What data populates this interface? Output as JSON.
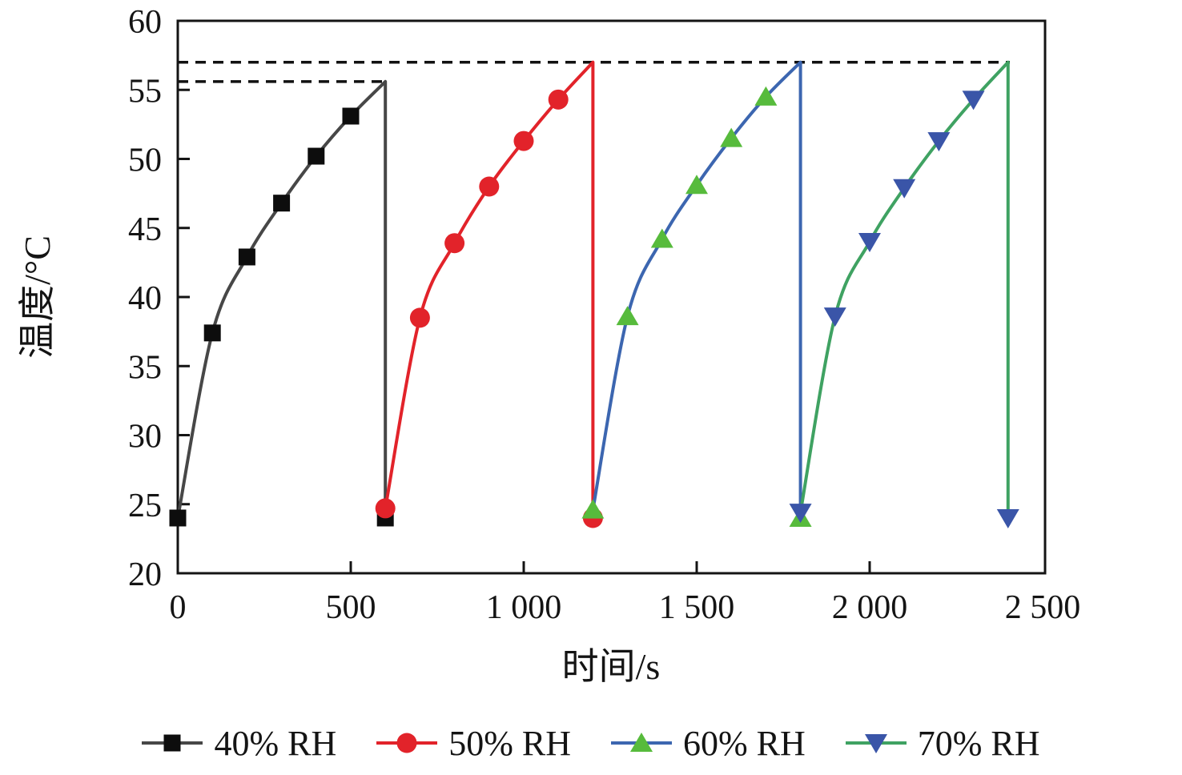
{
  "chart_data": {
    "type": "line",
    "title": "",
    "xlabel": "时间/s",
    "ylabel": "温度/°C",
    "xlim": [
      0,
      2507
    ],
    "ylim": [
      20,
      60
    ],
    "x_ticks": [
      0,
      500,
      1000,
      1500,
      2000,
      2500
    ],
    "x_tick_labels": [
      "0",
      "500",
      "1 000",
      "1 500",
      "2 000",
      "2 500"
    ],
    "y_ticks": [
      20,
      25,
      30,
      35,
      40,
      45,
      50,
      55,
      60
    ],
    "grid": "off",
    "axis_color": "#141414",
    "reference_lines": [
      {
        "y": 57.0,
        "x_start": 0,
        "x_end": 2405,
        "style": "dashed",
        "color": "#111111"
      },
      {
        "y": 55.6,
        "x_start": 0,
        "x_end": 600,
        "style": "dashed",
        "color": "#111111"
      }
    ],
    "series": [
      {
        "name": "40% RH",
        "line_color": "#474747",
        "marker": "square",
        "marker_color": "#0d0d0d",
        "rise": [
          [
            0,
            24.0
          ],
          [
            100,
            37.4
          ],
          [
            200,
            42.9
          ],
          [
            300,
            46.8
          ],
          [
            400,
            50.2
          ],
          [
            500,
            53.1
          ],
          [
            600,
            55.6
          ]
        ],
        "drop": {
          "x": 600,
          "to": 24.0
        }
      },
      {
        "name": "50% RH",
        "line_color": "#e2232a",
        "marker": "circle",
        "marker_color": "#e2232a",
        "rise": [
          [
            600,
            24.7
          ],
          [
            700,
            38.5
          ],
          [
            800,
            43.9
          ],
          [
            900,
            48.0
          ],
          [
            1000,
            51.3
          ],
          [
            1100,
            54.3
          ],
          [
            1200,
            57.0
          ]
        ],
        "drop": {
          "x": 1200,
          "to": 24.0
        }
      },
      {
        "name": "60% RH",
        "line_color": "#3c66b0",
        "marker": "triangle-up",
        "marker_color": "#57bb3c",
        "rise": [
          [
            1200,
            24.6
          ],
          [
            1300,
            38.6
          ],
          [
            1400,
            44.2
          ],
          [
            1500,
            48.1
          ],
          [
            1600,
            51.5
          ],
          [
            1700,
            54.5
          ],
          [
            1800,
            57.0
          ]
        ],
        "drop": {
          "x": 1800,
          "to": 24.0
        }
      },
      {
        "name": "70% RH",
        "line_color": "#3fa262",
        "marker": "triangle-down",
        "marker_color": "#3a55a8",
        "rise": [
          [
            1800,
            24.4
          ],
          [
            1900,
            38.6
          ],
          [
            2000,
            44.0
          ],
          [
            2100,
            47.9
          ],
          [
            2200,
            51.3
          ],
          [
            2300,
            54.3
          ],
          [
            2400,
            57.0
          ]
        ],
        "drop": {
          "x": 2400,
          "to": 24.0
        }
      }
    ],
    "legend": {
      "position": "bottom",
      "items": [
        "40% RH",
        "50% RH",
        "60% RH",
        "70% RH"
      ]
    }
  }
}
